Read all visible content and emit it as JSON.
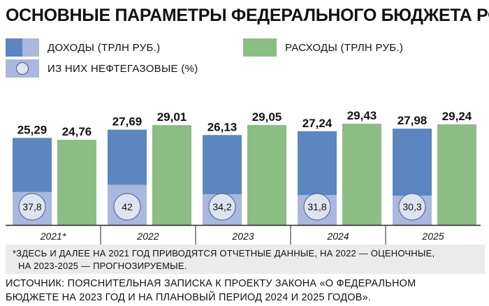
{
  "title": "ОСНОВНЫЕ ПАРАМЕТРЫ ФЕДЕРАЛЬНОГО БЮДЖЕТА РФ",
  "legend": {
    "income": "ДОХОДЫ (ТРЛН РУБ.)",
    "expenses": "РАСХОДЫ (ТРЛН РУБ.)",
    "oil_gas": "ИЗ НИХ НЕФТЕГАЗОВЫЕ (%)"
  },
  "colors": {
    "income": "#5b86c0",
    "income_oil": "#a9b8dc",
    "expenses": "#8cbd85",
    "circle_fill": "#dde3f1",
    "circle_stroke": "#4a5d84",
    "axis": "#222222"
  },
  "chart_data": {
    "type": "bar",
    "categories": [
      "2021*",
      "2022",
      "2023",
      "2024",
      "2025"
    ],
    "series": [
      {
        "name": "ДОХОДЫ (ТРЛН РУБ.)",
        "values": [
          25.29,
          27.69,
          26.13,
          27.24,
          27.98
        ],
        "labels": [
          "25,29",
          "27,69",
          "26,13",
          "27,24",
          "27,98"
        ]
      },
      {
        "name": "РАСХОДЫ (ТРЛН РУБ.)",
        "values": [
          24.76,
          29.01,
          29.05,
          29.43,
          29.24
        ],
        "labels": [
          "24,76",
          "29,01",
          "29,05",
          "29,43",
          "29,24"
        ]
      }
    ],
    "oil_gas_share": {
      "name": "ИЗ НИХ НЕФТЕГАЗОВЫЕ (%)",
      "values": [
        37.8,
        42,
        34.2,
        31.8,
        30.3
      ],
      "labels": [
        "37,8",
        "42",
        "34,2",
        "31,8",
        "30,3"
      ]
    }
  },
  "footnote": {
    "line1": "*ЗДЕСЬ И ДАЛЕЕ НА 2021 ГОД ПРИВОДЯТСЯ ОТЧЕТНЫЕ ДАННЫЕ, НА 2022 — ОЦЕНОЧНЫЕ,",
    "line2": "НА 2023-2025 — ПРОГНОЗИРУЕМЫЕ."
  },
  "source": {
    "line1": "ИСТОЧНИК: ПОЯСНИТЕЛЬНАЯ ЗАПИСКА К ПРОЕКТУ ЗАКОНА «О ФЕДЕРАЛЬНОМ",
    "line2": "БЮДЖЕТЕ НА 2023 ГОД И НА ПЛАНОВЫЙ ПЕРИОД 2024 И 2025 ГОДОВ»."
  }
}
